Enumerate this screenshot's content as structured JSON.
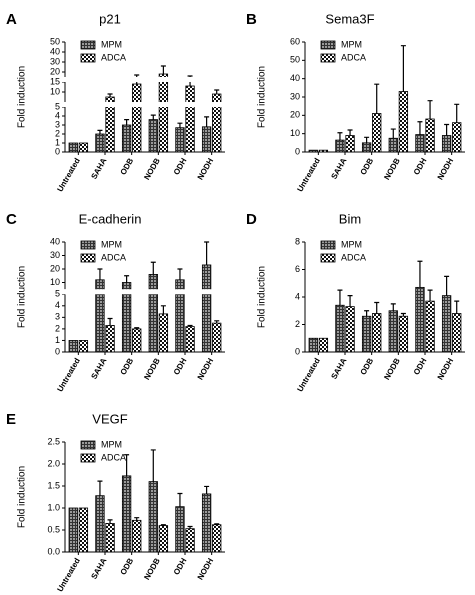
{
  "chart_data": [
    {
      "type": "bar",
      "panel": "A",
      "title": "p21",
      "ylabel": "Fold induction",
      "categories": [
        "Untreated",
        "SAHA",
        "ODB",
        "NODB",
        "ODH",
        "NODH"
      ],
      "series": [
        {
          "name": "MPM",
          "values": [
            1,
            2.0,
            3.0,
            3.6,
            2.7,
            2.8
          ],
          "errors": [
            0,
            0.4,
            0.6,
            0.5,
            0.5,
            1.1
          ]
        },
        {
          "name": "ADCA",
          "values": [
            1,
            7.5,
            14,
            18,
            13,
            9
          ],
          "errors": [
            0,
            1.5,
            3,
            8,
            3,
            2
          ]
        }
      ],
      "y_segments": [
        {
          "ylim": [
            0,
            5
          ],
          "yticks": [
            0,
            1,
            2,
            3,
            4,
            5
          ]
        },
        {
          "ylim": [
            5,
            15
          ],
          "yticks": [
            10,
            15
          ]
        },
        {
          "ylim": [
            15,
            50
          ],
          "yticks": [
            20,
            30,
            40,
            50
          ]
        }
      ]
    },
    {
      "type": "bar",
      "panel": "B",
      "title": "Sema3F",
      "ylabel": "Fold induction",
      "categories": [
        "Untreated",
        "SAHA",
        "ODB",
        "NODB",
        "ODH",
        "NODH"
      ],
      "series": [
        {
          "name": "MPM",
          "values": [
            1,
            6.5,
            5,
            7.5,
            9.5,
            9
          ],
          "errors": [
            0,
            4,
            3,
            5,
            7,
            6
          ]
        },
        {
          "name": "ADCA",
          "values": [
            1,
            9,
            21,
            33,
            18,
            16
          ],
          "errors": [
            0,
            3,
            16,
            25,
            10,
            10
          ]
        }
      ],
      "ylim": [
        0,
        60
      ],
      "yticks": [
        0,
        10,
        20,
        30,
        40,
        50,
        60
      ]
    },
    {
      "type": "bar",
      "panel": "C",
      "title": "E-cadherin",
      "ylabel": "Fold induction",
      "categories": [
        "Untreated",
        "SAHA",
        "ODB",
        "NODB",
        "ODH",
        "NODH"
      ],
      "series": [
        {
          "name": "MPM",
          "values": [
            1,
            12,
            10,
            16,
            12,
            23
          ],
          "errors": [
            0,
            8,
            5,
            9,
            8,
            17
          ]
        },
        {
          "name": "ADCA",
          "values": [
            1,
            2.3,
            2.0,
            3.3,
            2.2,
            2.5
          ],
          "errors": [
            0,
            0.6,
            0.1,
            0.7,
            0.1,
            0.2
          ]
        }
      ],
      "y_segments": [
        {
          "ylim": [
            0,
            5
          ],
          "yticks": [
            0,
            1,
            2,
            3,
            4,
            5
          ]
        },
        {
          "ylim": [
            5,
            40
          ],
          "yticks": [
            10,
            20,
            30,
            40
          ]
        }
      ]
    },
    {
      "type": "bar",
      "panel": "D",
      "title": "Bim",
      "ylabel": "Fold induction",
      "categories": [
        "Untreated",
        "SAHA",
        "ODB",
        "NODB",
        "ODH",
        "NODH"
      ],
      "series": [
        {
          "name": "MPM",
          "values": [
            1,
            3.4,
            2.6,
            3.0,
            4.7,
            4.1
          ],
          "errors": [
            0,
            1.1,
            0.4,
            0.5,
            1.9,
            1.4
          ]
        },
        {
          "name": "ADCA",
          "values": [
            1,
            3.3,
            2.8,
            2.6,
            3.7,
            2.8
          ],
          "errors": [
            0,
            0.8,
            0.8,
            0.2,
            0.8,
            0.9
          ]
        }
      ],
      "ylim": [
        0,
        8
      ],
      "yticks": [
        0,
        2,
        4,
        6,
        8
      ]
    },
    {
      "type": "bar",
      "panel": "E",
      "title": "VEGF",
      "ylabel": "Fold induction",
      "categories": [
        "Untreated",
        "SAHA",
        "ODB",
        "NODB",
        "ODH",
        "NODH"
      ],
      "series": [
        {
          "name": "MPM",
          "values": [
            1.0,
            1.28,
            1.73,
            1.6,
            1.03,
            1.32
          ],
          "errors": [
            0,
            0.33,
            0.48,
            0.72,
            0.3,
            0.17
          ]
        },
        {
          "name": "ADCA",
          "values": [
            1.0,
            0.65,
            0.72,
            0.6,
            0.53,
            0.62
          ],
          "errors": [
            0,
            0.08,
            0.06,
            0.02,
            0.05,
            0.02
          ]
        }
      ],
      "ylim": [
        0,
        2.5
      ],
      "yticks": [
        {
          "value": 0,
          "label": "0.0"
        },
        {
          "value": 0.5,
          "label": "0.5"
        },
        {
          "value": 1,
          "label": "1.0"
        },
        {
          "value": 1.5,
          "label": "1.5"
        },
        {
          "value": 2,
          "label": "2.0"
        },
        {
          "value": 2.5,
          "label": "2.5"
        }
      ]
    }
  ]
}
